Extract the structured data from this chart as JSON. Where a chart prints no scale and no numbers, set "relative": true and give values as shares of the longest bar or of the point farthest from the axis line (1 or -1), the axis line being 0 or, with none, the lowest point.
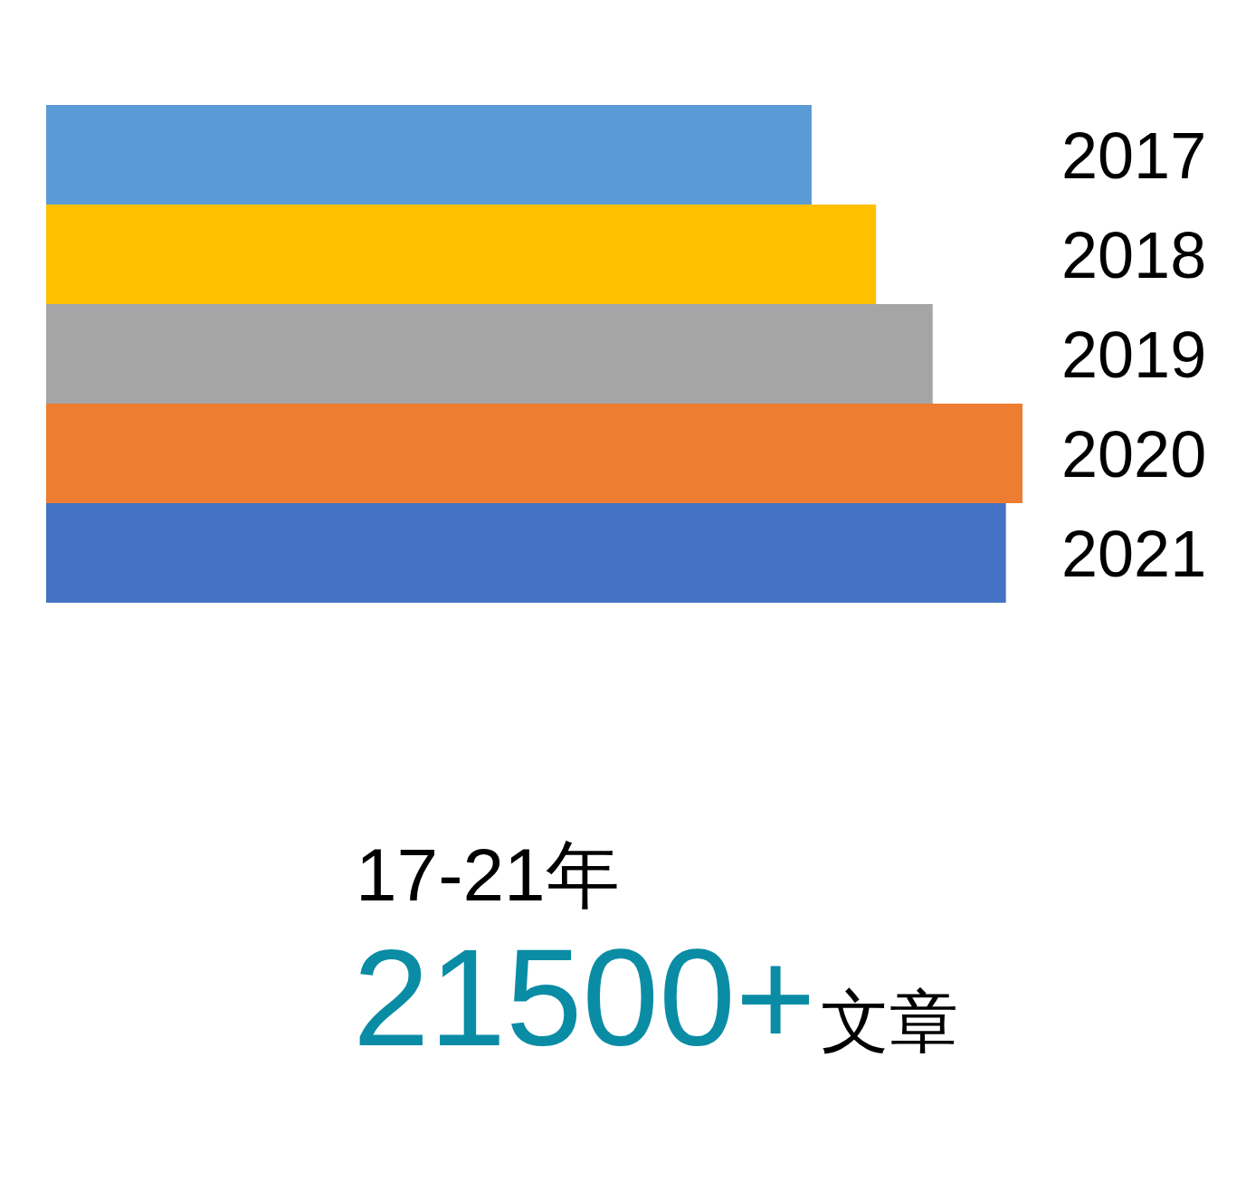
{
  "chart_data": {
    "type": "bar",
    "orientation": "horizontal",
    "relative": true,
    "categories": [
      "2017",
      "2018",
      "2019",
      "2020",
      "2021"
    ],
    "values": [
      0.784,
      0.85,
      0.908,
      1,
      0.983
    ],
    "colors": [
      "#5b9bd5",
      "#ffc000",
      "#a5a5a5",
      "#ed7d31",
      "#4472c4"
    ],
    "annotations": [
      "17-21年",
      "21500+",
      "文章"
    ]
  }
}
